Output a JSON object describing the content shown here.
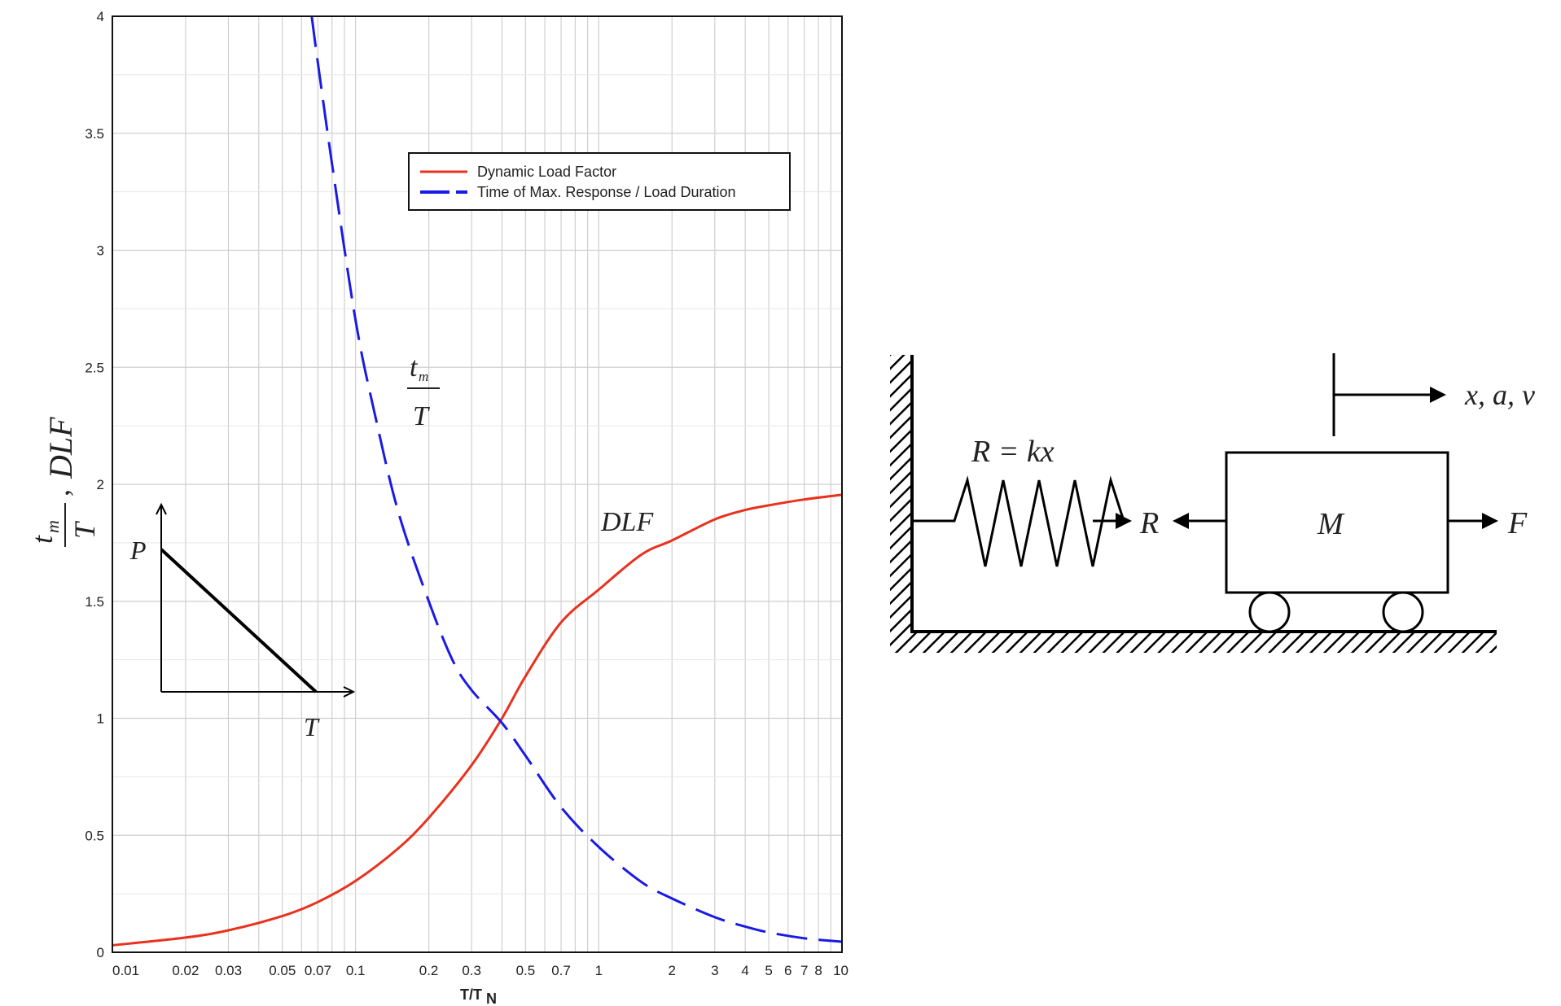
{
  "chart_data": {
    "type": "line",
    "x_scale": "log",
    "xlim": [
      0.01,
      10
    ],
    "ylim": [
      0,
      4
    ],
    "grid": true,
    "xlabel_main": "T/T",
    "xlabel_sub": "N",
    "ylabel": "tm/T, DLF",
    "x_ticks": [
      "0.01",
      "0.02",
      "0.03",
      "0.05",
      "0.07",
      "0.1",
      "0.2",
      "0.3",
      "0.5",
      "0.7",
      "1",
      "2",
      "3",
      "4",
      "5",
      "6",
      "7",
      "8",
      "10"
    ],
    "y_ticks": [
      "0",
      "0.5",
      "1",
      "1.5",
      "2",
      "2.5",
      "3",
      "3.5",
      "4"
    ],
    "legend_position": "top-right",
    "series": [
      {
        "name": "Dynamic Load Factor",
        "style": "solid",
        "color": "#e8321e",
        "x": [
          0.01,
          0.02,
          0.03,
          0.05,
          0.07,
          0.1,
          0.15,
          0.2,
          0.3,
          0.4,
          0.5,
          0.7,
          1,
          1.5,
          2,
          3,
          4,
          5,
          7,
          10
        ],
        "y": [
          0.03,
          0.063,
          0.094,
          0.155,
          0.215,
          0.305,
          0.445,
          0.575,
          0.8,
          1.0,
          1.18,
          1.41,
          1.55,
          1.7,
          1.76,
          1.85,
          1.89,
          1.91,
          1.935,
          1.955
        ]
      },
      {
        "name": "Time of Max. Response / Load Duration",
        "style": "dashed",
        "color": "#1a1ae6",
        "x": [
          0.066,
          0.07,
          0.08,
          0.1,
          0.12,
          0.15,
          0.2,
          0.25,
          0.3,
          0.4,
          0.5,
          0.7,
          1,
          1.5,
          2,
          3,
          4,
          5,
          7,
          10
        ],
        "y": [
          4.0,
          3.8,
          3.37,
          2.7,
          2.3,
          1.88,
          1.5,
          1.25,
          1.12,
          0.98,
          0.84,
          0.62,
          0.45,
          0.3,
          0.23,
          0.15,
          0.11,
          0.085,
          0.06,
          0.045
        ]
      }
    ],
    "annotations": {
      "tm_numerator": "t",
      "tm_sub": "m",
      "tm_denominator": "T",
      "dlf": "DLF",
      "inset_p": "P",
      "inset_t": "T"
    }
  },
  "diagram": {
    "spring_label": "R = kx",
    "reaction_left": "R",
    "mass": "M",
    "force": "F",
    "motion": "x, a, v"
  },
  "colors": {
    "dlf": "#e8321e",
    "tm": "#1a1ae6",
    "grid": "#cfcfcf",
    "ink": "#000000"
  }
}
